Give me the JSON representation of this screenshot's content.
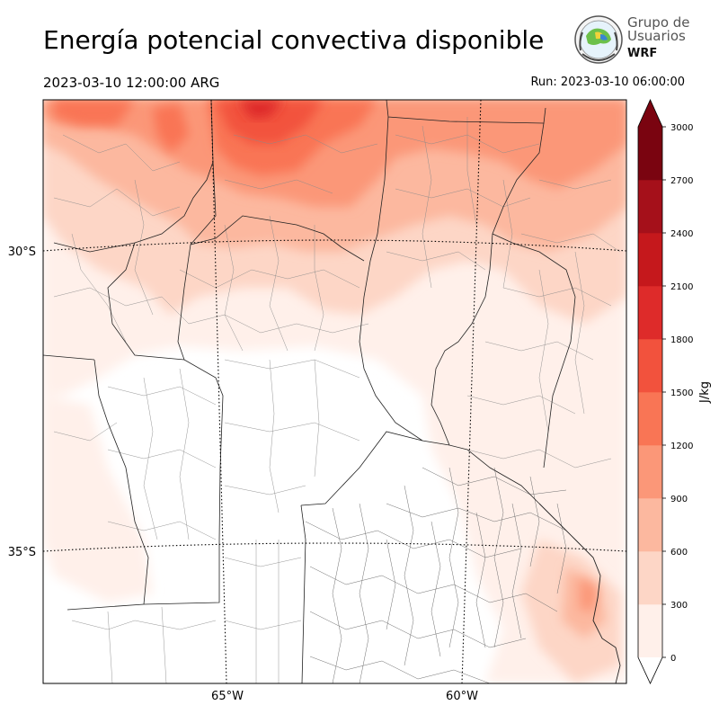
{
  "header": {
    "title": "Energía potencial convectiva disponible",
    "valid_time": "2023-03-10 12:00:00 ARG",
    "run_time": "Run: 2023-03-10 06:00:00"
  },
  "logo": {
    "line1": "Grupo de",
    "line2": "Usuarios",
    "line3": "WRF"
  },
  "map": {
    "lat_labels": [
      "30°S",
      "35°S"
    ],
    "lon_labels": [
      "65°W",
      "60°W"
    ],
    "region": "Central Argentina"
  },
  "colorbar": {
    "label": "J/kg",
    "ticks": [
      "0",
      "300",
      "600",
      "900",
      "1200",
      "1500",
      "1800",
      "2100",
      "2400",
      "2700",
      "3000"
    ],
    "colors": [
      "#fff0ea",
      "#fdd6c6",
      "#fcb89f",
      "#fb9778",
      "#f97555",
      "#f2523d",
      "#de2b2a",
      "#c5181c",
      "#a5101a",
      "#7a0410"
    ],
    "extend": "both"
  }
}
